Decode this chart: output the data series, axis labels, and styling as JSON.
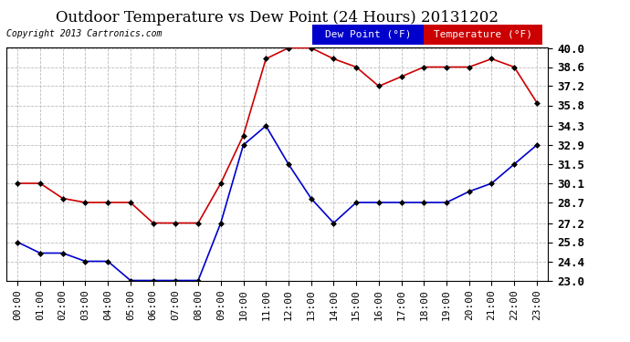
{
  "title": "Outdoor Temperature vs Dew Point (24 Hours) 20131202",
  "copyright": "Copyright 2013 Cartronics.com",
  "hours": [
    "00:00",
    "01:00",
    "02:00",
    "03:00",
    "04:00",
    "05:00",
    "06:00",
    "07:00",
    "08:00",
    "09:00",
    "10:00",
    "11:00",
    "12:00",
    "13:00",
    "14:00",
    "15:00",
    "16:00",
    "17:00",
    "18:00",
    "19:00",
    "20:00",
    "21:00",
    "22:00",
    "23:00"
  ],
  "temperature": [
    30.1,
    30.1,
    29.0,
    28.7,
    28.7,
    28.7,
    27.2,
    27.2,
    27.2,
    30.1,
    33.6,
    39.2,
    40.0,
    40.0,
    39.2,
    38.6,
    37.2,
    37.9,
    38.6,
    38.6,
    38.6,
    39.2,
    38.6,
    36.0
  ],
  "dew_point": [
    25.8,
    25.0,
    25.0,
    24.4,
    24.4,
    23.0,
    23.0,
    23.0,
    23.0,
    27.2,
    32.9,
    34.3,
    31.5,
    29.0,
    27.2,
    28.7,
    28.7,
    28.7,
    28.7,
    28.7,
    29.5,
    30.1,
    31.5,
    32.9
  ],
  "temp_color": "#cc0000",
  "dew_color": "#0000cc",
  "ylim_min": 23.0,
  "ylim_max": 40.0,
  "yticks": [
    23.0,
    24.4,
    25.8,
    27.2,
    28.7,
    30.1,
    31.5,
    32.9,
    34.3,
    35.8,
    37.2,
    38.6,
    40.0
  ],
  "bg_color": "#ffffff",
  "plot_bg_color": "#ffffff",
  "grid_color": "#bbbbbb",
  "title_fontsize": 12,
  "axis_fontsize": 8,
  "tick_label_fontsize": 9,
  "legend_dew_label": "Dew Point (°F)",
  "legend_temp_label": "Temperature (°F)",
  "marker": "D",
  "marker_size": 3,
  "linewidth": 1.2,
  "border_color": "#000000"
}
